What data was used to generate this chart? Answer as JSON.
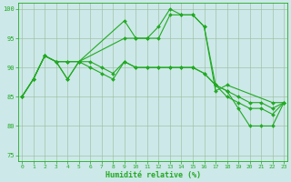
{
  "xlabel": "Humidité relative (%)",
  "xlim": [
    -0.3,
    23.3
  ],
  "ylim": [
    74,
    101
  ],
  "yticks": [
    75,
    80,
    85,
    90,
    95,
    100
  ],
  "xtick_labels": [
    "0",
    "1",
    "2",
    "3",
    "4",
    "5",
    "6",
    "7",
    "8",
    "9",
    "10",
    "11",
    "12",
    "13",
    "14",
    "15",
    "16",
    "17",
    "18",
    "19",
    "20",
    "21",
    "22",
    "23"
  ],
  "background_color": "#cce8e8",
  "grid_color": "#99bb99",
  "line_color": "#22aa22",
  "series": [
    {
      "x": [
        0,
        1,
        2,
        3,
        4,
        5,
        9,
        10,
        11,
        12,
        13,
        14,
        15,
        16,
        17,
        18,
        22,
        23
      ],
      "y": [
        85,
        88,
        92,
        91,
        88,
        91,
        98,
        95,
        95,
        97,
        100,
        99,
        99,
        97,
        86,
        87,
        84,
        84
      ]
    },
    {
      "x": [
        0,
        1,
        2,
        3,
        4,
        5,
        9,
        10,
        11,
        12,
        13,
        14,
        15,
        16,
        17,
        18,
        19,
        20,
        21,
        22,
        23
      ],
      "y": [
        85,
        88,
        92,
        91,
        91,
        91,
        95,
        95,
        95,
        95,
        99,
        99,
        99,
        97,
        87,
        86,
        83,
        80,
        80,
        80,
        84
      ]
    },
    {
      "x": [
        0,
        1,
        2,
        3,
        4,
        5,
        6,
        7,
        8,
        9,
        10,
        11,
        12,
        13,
        14,
        15,
        16,
        17,
        18,
        19,
        20,
        21,
        22,
        23
      ],
      "y": [
        85,
        88,
        92,
        91,
        88,
        91,
        91,
        90,
        89,
        91,
        90,
        90,
        90,
        90,
        90,
        90,
        89,
        87,
        86,
        85,
        84,
        84,
        83,
        84
      ]
    },
    {
      "x": [
        0,
        1,
        2,
        3,
        4,
        5,
        6,
        7,
        8,
        9,
        10,
        11,
        12,
        13,
        14,
        15,
        16,
        17,
        18,
        19,
        20,
        21,
        22,
        23
      ],
      "y": [
        85,
        88,
        92,
        91,
        91,
        91,
        90,
        89,
        88,
        91,
        90,
        90,
        90,
        90,
        90,
        90,
        89,
        87,
        85,
        84,
        83,
        83,
        82,
        84
      ]
    }
  ]
}
